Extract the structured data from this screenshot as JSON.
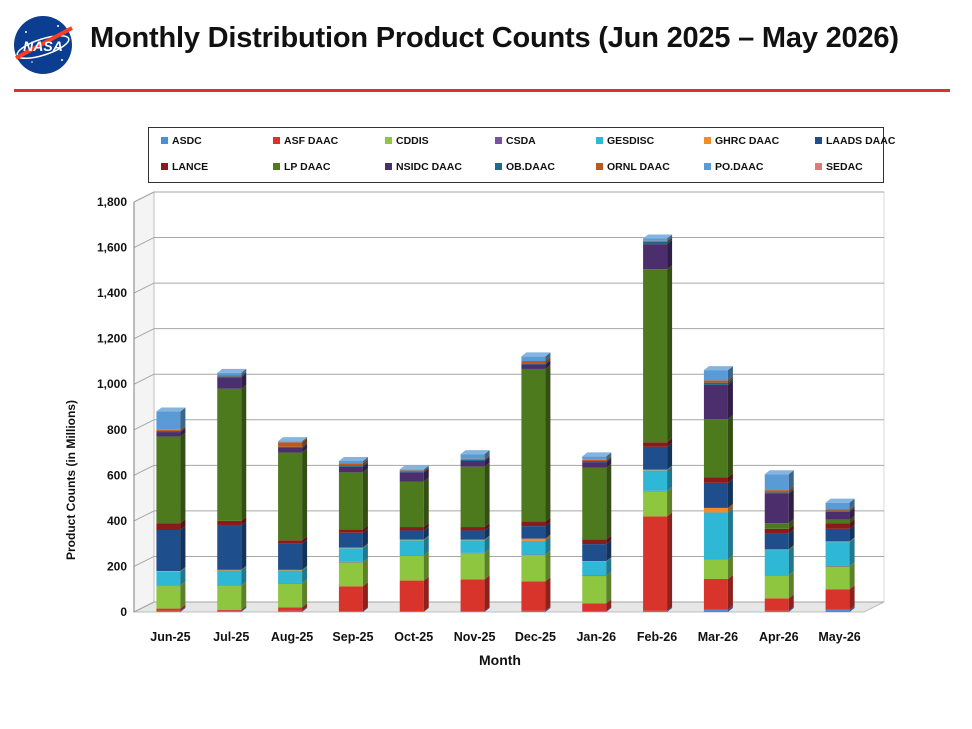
{
  "header": {
    "title": "Monthly Distribution Product Counts (Jun 2025 – May 2026)",
    "logo_text": "NASA"
  },
  "colors": {
    "accent_rule": "#d9342b",
    "ASDC": "#4a90d9",
    "ASF DAAC": "#d9342b",
    "CDDIS": "#8ec63f",
    "CSDA": "#7a4fa8",
    "GESDISC": "#2fb8d6",
    "GHRC DAAC": "#f28c28",
    "LAADS DAAC": "#1f4e8c",
    "LANCE": "#8b1a1a",
    "LP DAAC": "#4e7a1e",
    "NSIDC DAAC": "#4b2e6b",
    "OB.DAAC": "#1d6a8a",
    "ORNL DAAC": "#c0561a",
    "PO.DAAC": "#5b9bd5",
    "SEDAC": "#e07a7a"
  },
  "chart_data": {
    "type": "bar",
    "stacked": true,
    "xlabel": "Month",
    "ylabel": "Product Counts (in Millions)",
    "ylim": [
      0,
      1800
    ],
    "yticks": [
      0,
      200,
      400,
      600,
      800,
      1000,
      1200,
      1400,
      1600,
      1800
    ],
    "ytick_labels": [
      "0",
      "200",
      "400",
      "600",
      "800",
      "1,000",
      "1,200",
      "1,400",
      "1,600",
      "1,800"
    ],
    "grid": true,
    "legend_position": "top",
    "categories": [
      "Jun-25",
      "Jul-25",
      "Aug-25",
      "Sep-25",
      "Oct-25",
      "Nov-25",
      "Dec-25",
      "Jan-26",
      "Feb-26",
      "Mar-26",
      "Apr-26",
      "May-26"
    ],
    "series": [
      {
        "name": "ASDC",
        "values": [
          5,
          5,
          5,
          3,
          3,
          3,
          5,
          3,
          5,
          10,
          5,
          10
        ]
      },
      {
        "name": "ASF DAAC",
        "values": [
          10,
          5,
          15,
          110,
          135,
          140,
          130,
          35,
          415,
          135,
          55,
          90
        ]
      },
      {
        "name": "CDDIS",
        "values": [
          100,
          105,
          105,
          105,
          110,
          115,
          115,
          120,
          110,
          85,
          100,
          100
        ]
      },
      {
        "name": "CSDA",
        "values": [
          2,
          2,
          2,
          2,
          2,
          2,
          2,
          2,
          2,
          2,
          2,
          2
        ]
      },
      {
        "name": "GESDISC",
        "values": [
          60,
          65,
          55,
          60,
          65,
          55,
          60,
          60,
          90,
          205,
          110,
          105
        ]
      },
      {
        "name": "GHRC DAAC",
        "values": [
          3,
          3,
          3,
          3,
          3,
          3,
          10,
          3,
          3,
          20,
          3,
          3
        ]
      },
      {
        "name": "LAADS DAAC",
        "values": [
          180,
          195,
          115,
          65,
          40,
          40,
          55,
          75,
          100,
          110,
          70,
          55
        ]
      },
      {
        "name": "LANCE",
        "values": [
          30,
          20,
          15,
          15,
          15,
          15,
          20,
          20,
          20,
          25,
          20,
          25
        ]
      },
      {
        "name": "LP DAAC",
        "values": [
          380,
          580,
          385,
          250,
          200,
          265,
          670,
          315,
          760,
          255,
          25,
          15
        ]
      },
      {
        "name": "NSIDC DAAC",
        "values": [
          20,
          50,
          20,
          25,
          40,
          25,
          20,
          25,
          110,
          150,
          130,
          35
        ]
      },
      {
        "name": "OB.DAAC",
        "values": [
          5,
          5,
          5,
          5,
          5,
          5,
          5,
          5,
          10,
          10,
          5,
          5
        ]
      },
      {
        "name": "ORNL DAAC",
        "values": [
          5,
          5,
          20,
          10,
          3,
          5,
          10,
          5,
          5,
          10,
          10,
          5
        ]
      },
      {
        "name": "PO.DAAC",
        "values": [
          80,
          10,
          5,
          10,
          5,
          20,
          20,
          15,
          10,
          45,
          70,
          30
        ]
      },
      {
        "name": "SEDAC",
        "values": [
          0,
          0,
          0,
          0,
          0,
          0,
          0,
          0,
          0,
          0,
          0,
          0
        ]
      }
    ]
  }
}
